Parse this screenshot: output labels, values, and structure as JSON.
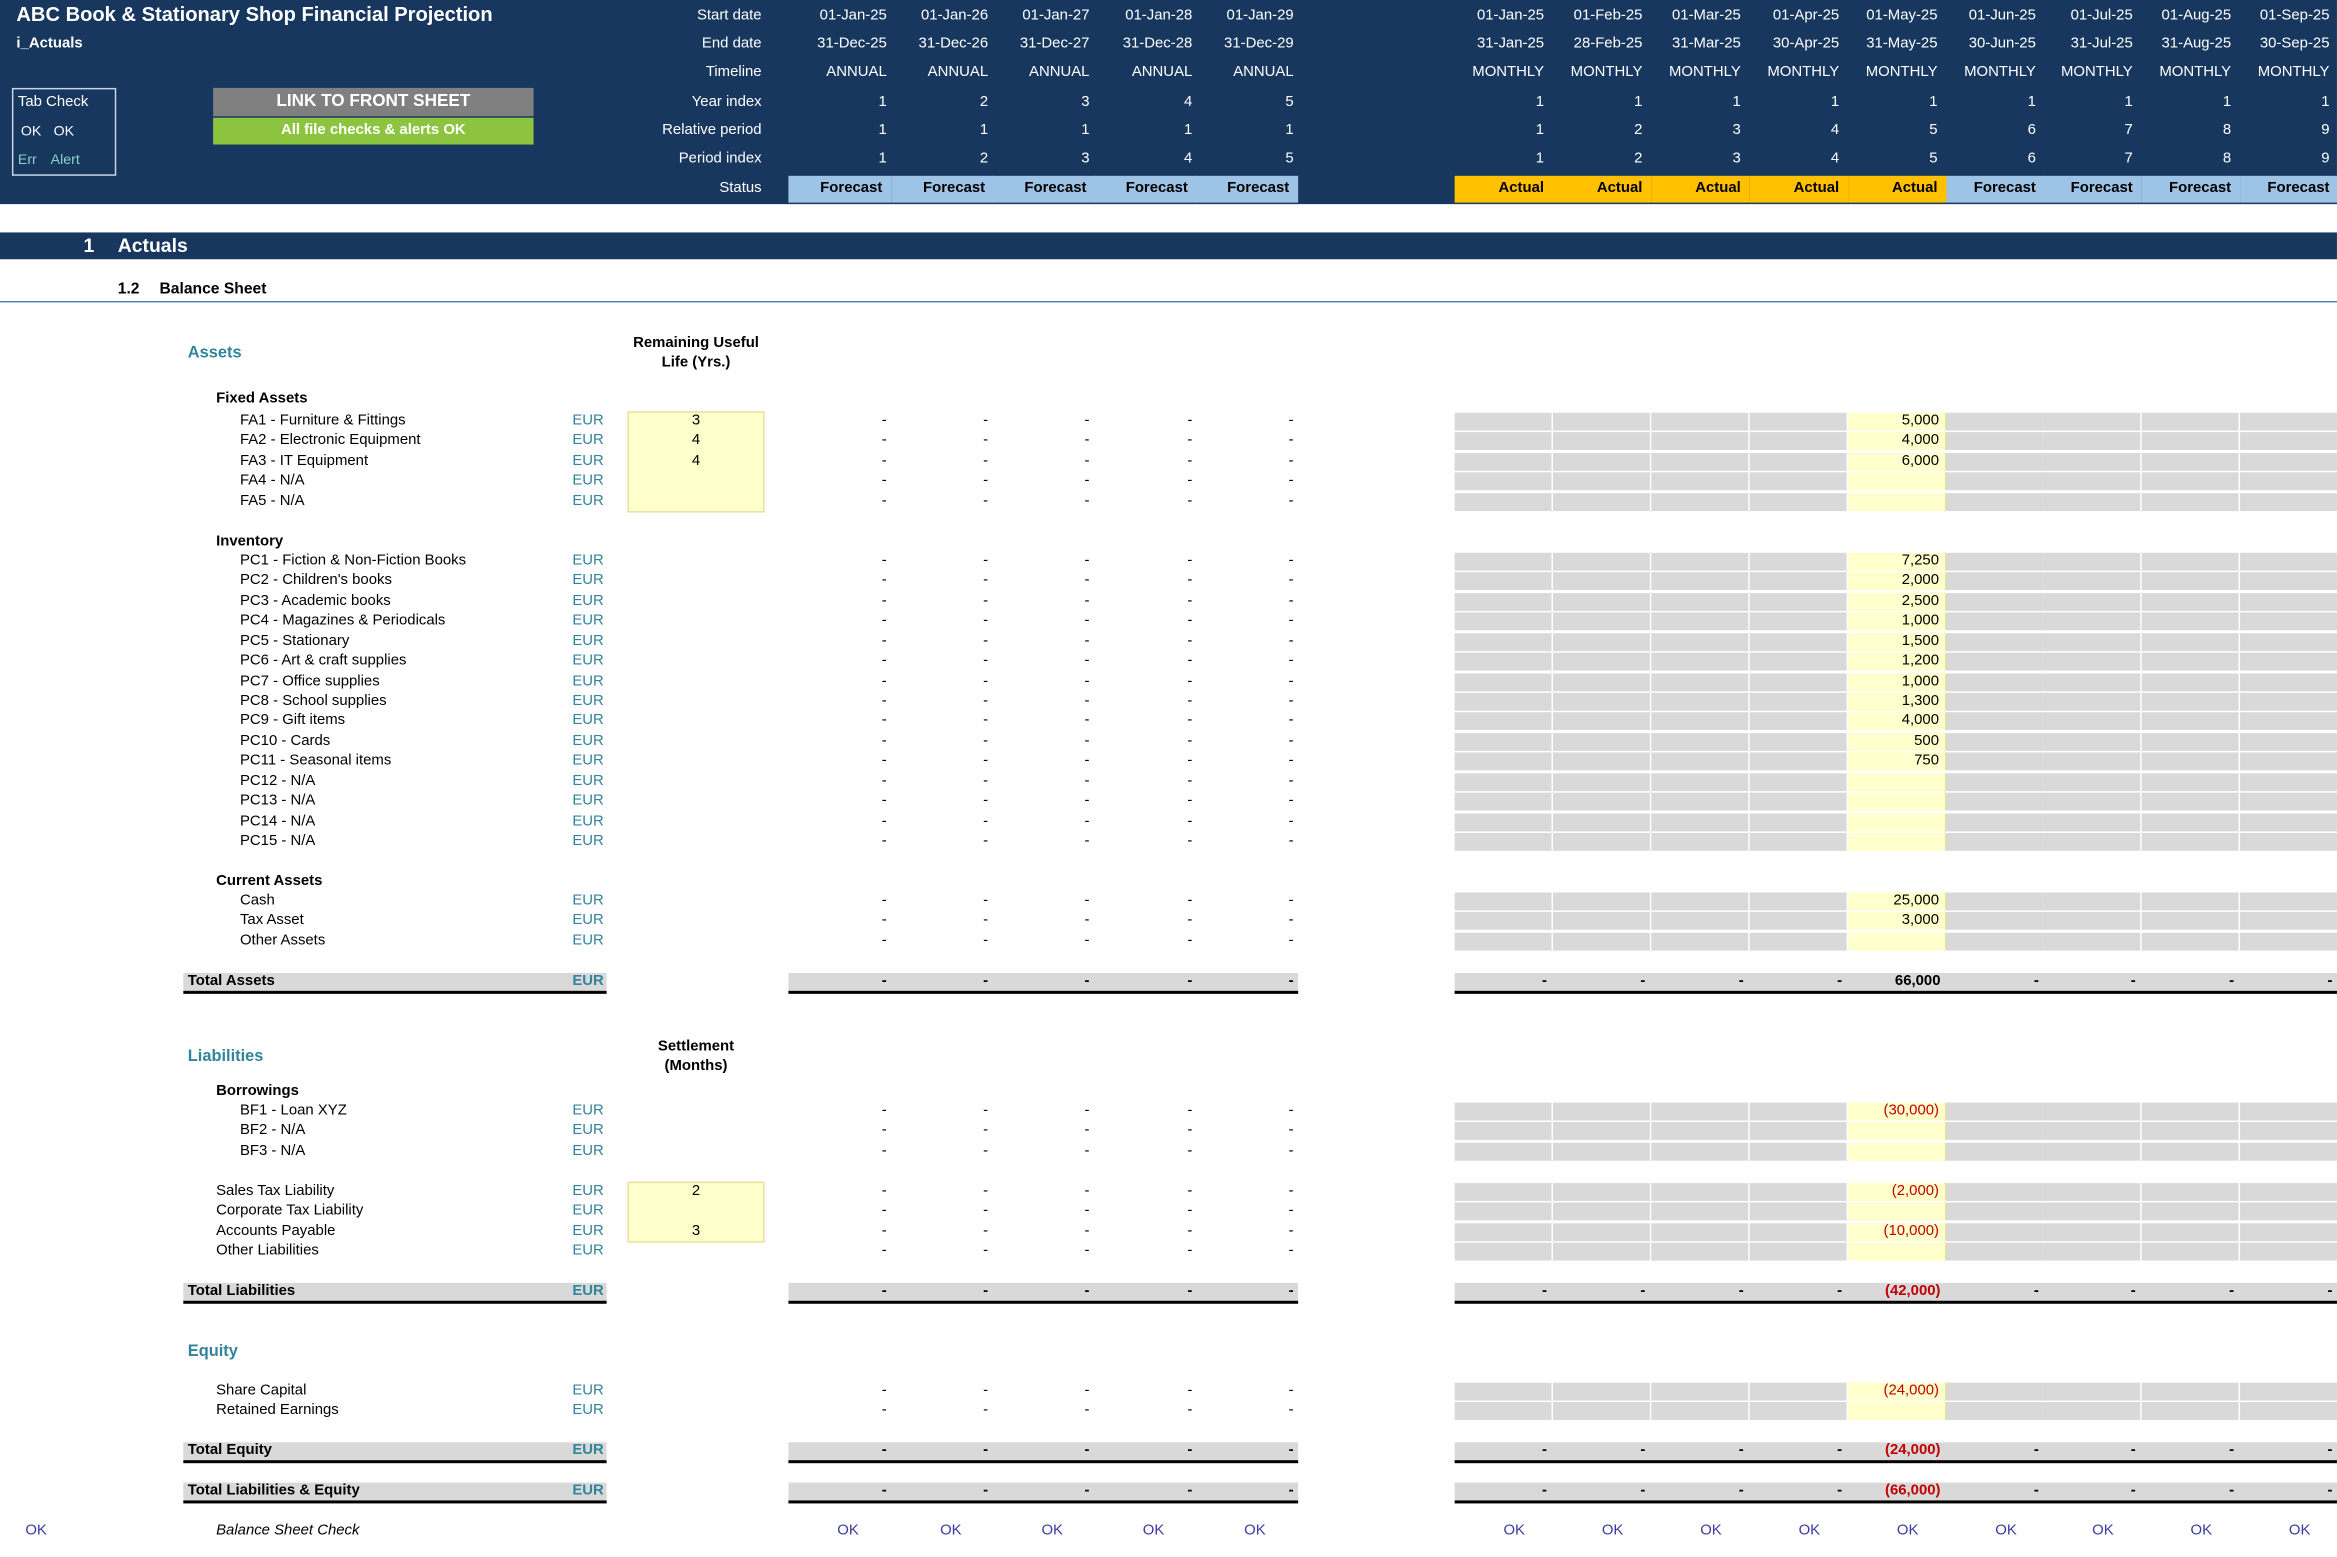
{
  "title": "ABC Book & Stationary Shop Financial Projection",
  "sheet_name": "i_Actuals",
  "tab_check": {
    "label": "Tab Check",
    "row1": [
      "OK",
      "OK"
    ],
    "row2": [
      "Err",
      "Alert"
    ]
  },
  "buttons": {
    "link": "LINK TO FRONT SHEET",
    "checks": "All file checks & alerts OK"
  },
  "timeline_labels": [
    "Start date",
    "End date",
    "Timeline",
    "Year index",
    "Relative period",
    "Period index",
    "Status"
  ],
  "annual_columns": [
    {
      "start": "01-Jan-25",
      "end": "31-Dec-25",
      "timeline": "ANNUAL",
      "year": "1",
      "rel": "1",
      "period": "1",
      "status": "Forecast"
    },
    {
      "start": "01-Jan-26",
      "end": "31-Dec-26",
      "timeline": "ANNUAL",
      "year": "2",
      "rel": "1",
      "period": "2",
      "status": "Forecast"
    },
    {
      "start": "01-Jan-27",
      "end": "31-Dec-27",
      "timeline": "ANNUAL",
      "year": "3",
      "rel": "1",
      "period": "3",
      "status": "Forecast"
    },
    {
      "start": "01-Jan-28",
      "end": "31-Dec-28",
      "timeline": "ANNUAL",
      "year": "4",
      "rel": "1",
      "period": "4",
      "status": "Forecast"
    },
    {
      "start": "01-Jan-29",
      "end": "31-Dec-29",
      "timeline": "ANNUAL",
      "year": "5",
      "rel": "1",
      "period": "5",
      "status": "Forecast"
    }
  ],
  "monthly_columns": [
    {
      "start": "01-Jan-25",
      "end": "31-Jan-25",
      "timeline": "MONTHLY",
      "year": "1",
      "rel": "1",
      "period": "1",
      "status": "Actual"
    },
    {
      "start": "01-Feb-25",
      "end": "28-Feb-25",
      "timeline": "MONTHLY",
      "year": "1",
      "rel": "2",
      "period": "2",
      "status": "Actual"
    },
    {
      "start": "01-Mar-25",
      "end": "31-Mar-25",
      "timeline": "MONTHLY",
      "year": "1",
      "rel": "3",
      "period": "3",
      "status": "Actual"
    },
    {
      "start": "01-Apr-25",
      "end": "30-Apr-25",
      "timeline": "MONTHLY",
      "year": "1",
      "rel": "4",
      "period": "4",
      "status": "Actual"
    },
    {
      "start": "01-May-25",
      "end": "31-May-25",
      "timeline": "MONTHLY",
      "year": "1",
      "rel": "5",
      "period": "5",
      "status": "Actual"
    },
    {
      "start": "01-Jun-25",
      "end": "30-Jun-25",
      "timeline": "MONTHLY",
      "year": "1",
      "rel": "6",
      "period": "6",
      "status": "Forecast"
    },
    {
      "start": "01-Jul-25",
      "end": "31-Jul-25",
      "timeline": "MONTHLY",
      "year": "1",
      "rel": "7",
      "period": "7",
      "status": "Forecast"
    },
    {
      "start": "01-Aug-25",
      "end": "31-Aug-25",
      "timeline": "MONTHLY",
      "year": "1",
      "rel": "8",
      "period": "8",
      "status": "Forecast"
    },
    {
      "start": "01-Sep-25",
      "end": "30-Sep-25",
      "timeline": "MONTHLY",
      "year": "1",
      "rel": "9",
      "period": "9",
      "status": "Forecast"
    }
  ],
  "section": {
    "number": "1",
    "title": "Actuals"
  },
  "subsection": {
    "number": "1.2",
    "title": "Balance Sheet"
  },
  "col_headers": {
    "useful_life": [
      "Remaining Useful",
      "Life (Yrs.)"
    ],
    "settlement": [
      "Settlement",
      "(Months)"
    ]
  },
  "dash": "-",
  "unit": "EUR",
  "assets": {
    "heading": "Assets",
    "fixed": {
      "heading": "Fixed Assets",
      "rows": [
        {
          "label": "FA1 - Furniture & Fittings",
          "input": "3",
          "may": "5,000"
        },
        {
          "label": "FA2 - Electronic Equipment",
          "input": "4",
          "may": "4,000"
        },
        {
          "label": "FA3 - IT Equipment",
          "input": "4",
          "may": "6,000"
        },
        {
          "label": "FA4 - N/A",
          "input": "",
          "may": ""
        },
        {
          "label": "FA5 - N/A",
          "input": "",
          "may": ""
        }
      ]
    },
    "inventory": {
      "heading": "Inventory",
      "rows": [
        {
          "label": "PC1 - Fiction & Non-Fiction Books",
          "may": "7,250"
        },
        {
          "label": "PC2 - Children's books",
          "may": "2,000"
        },
        {
          "label": "PC3 - Academic books",
          "may": "2,500"
        },
        {
          "label": "PC4 - Magazines & Periodicals",
          "may": "1,000"
        },
        {
          "label": "PC5 - Stationary",
          "may": "1,500"
        },
        {
          "label": "PC6 - Art & craft supplies",
          "may": "1,200"
        },
        {
          "label": "PC7 - Office supplies",
          "may": "1,000"
        },
        {
          "label": "PC8 - School supplies",
          "may": "1,300"
        },
        {
          "label": "PC9 - Gift items",
          "may": "4,000"
        },
        {
          "label": "PC10 - Cards",
          "may": "500"
        },
        {
          "label": "PC11 - Seasonal items",
          "may": "750"
        },
        {
          "label": "PC12 - N/A",
          "may": ""
        },
        {
          "label": "PC13 - N/A",
          "may": ""
        },
        {
          "label": "PC14 - N/A",
          "may": ""
        },
        {
          "label": "PC15 - N/A",
          "may": ""
        }
      ]
    },
    "current": {
      "heading": "Current Assets",
      "rows": [
        {
          "label": "Cash",
          "may": "25,000"
        },
        {
          "label": "Tax Asset",
          "may": "3,000"
        },
        {
          "label": "Other Assets",
          "may": ""
        }
      ]
    },
    "total": {
      "label": "Total Assets",
      "may": "66,000"
    }
  },
  "liabilities": {
    "heading": "Liabilities",
    "borrowings": {
      "heading": "Borrowings",
      "rows": [
        {
          "label": "BF1 - Loan XYZ",
          "may": "(30,000)"
        },
        {
          "label": "BF2 - N/A",
          "may": ""
        },
        {
          "label": "BF3 - N/A",
          "may": ""
        }
      ]
    },
    "other": [
      {
        "label": "Sales Tax Liability",
        "input": "2",
        "may": "(2,000)"
      },
      {
        "label": "Corporate Tax Liability",
        "input": "",
        "may": ""
      },
      {
        "label": "Accounts Payable",
        "input": "3",
        "may": "(10,000)"
      },
      {
        "label": "Other Liabilities",
        "input": null,
        "may": ""
      }
    ],
    "total": {
      "label": "Total Liabilities",
      "may": "(42,000)"
    }
  },
  "equity": {
    "heading": "Equity",
    "rows": [
      {
        "label": "Share Capital",
        "may": "(24,000)"
      },
      {
        "label": "Retained Earnings",
        "may": ""
      }
    ],
    "total": {
      "label": "Total Equity",
      "may": "(24,000)"
    }
  },
  "total_le": {
    "label": "Total Liabilities & Equity",
    "may": "(66,000)"
  },
  "check": {
    "left": "OK",
    "label": "Balance Sheet Check",
    "value": "OK"
  }
}
